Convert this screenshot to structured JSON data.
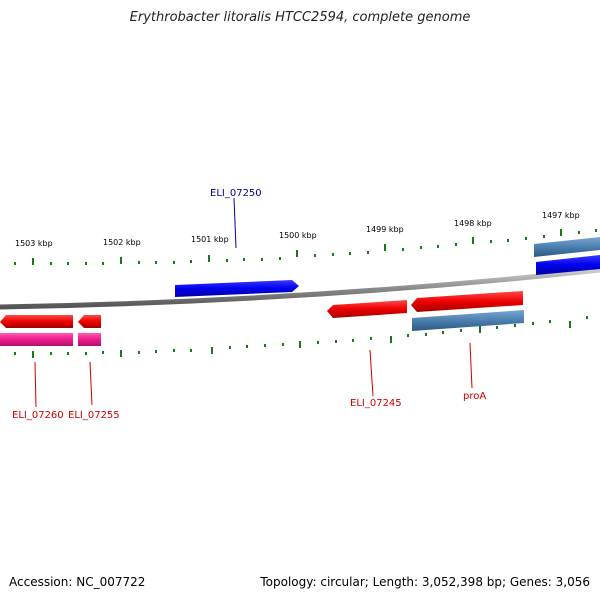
{
  "title": "Erythrobacter litoralis HTCC2594, complete genome",
  "footer": {
    "accession": "Accession: NC_007722",
    "stats": "Topology: circular; Length: 3,052,398 bp; Genes: 3,056"
  },
  "scale": {
    "unit": "kbp",
    "ticks": [
      {
        "kbp": 1503,
        "label": "1503 kbp"
      },
      {
        "kbp": 1502,
        "label": "1502 kbp"
      },
      {
        "kbp": 1501,
        "label": "1501 kbp"
      },
      {
        "kbp": 1500,
        "label": "1500 kbp"
      },
      {
        "kbp": 1499,
        "label": "1499 kbp"
      },
      {
        "kbp": 1498,
        "label": "1498 kbp"
      },
      {
        "kbp": 1497,
        "label": "1497 kbp"
      }
    ]
  },
  "labels": {
    "eli_07250": "ELI_07250",
    "eli_07260": "ELI_07260",
    "eli_07255": "ELI_07255",
    "eli_07245": "ELI_07245",
    "proa": "proA"
  },
  "colors": {
    "forward_cds": "#0000ee",
    "reverse_cds": "#ee0000",
    "reverse_gene": "#ee1c8c",
    "gene_steelblue": "#4a7fb0",
    "backbone": "#8a8a8a",
    "tick_green": "#1a7a1a",
    "label_blue": "#000099",
    "label_red": "#cc0000"
  }
}
